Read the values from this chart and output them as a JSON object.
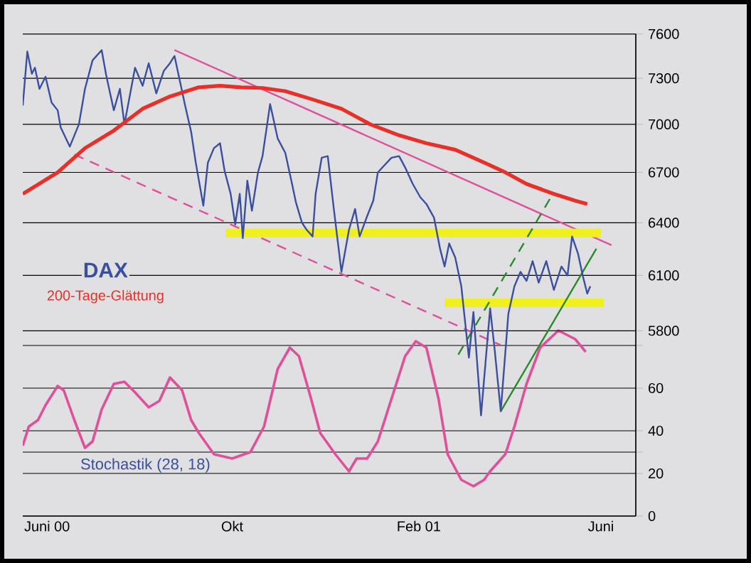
{
  "chart_data": {
    "type": "line",
    "annotations": [
      "Stochastik (28, 18)"
    ],
    "x": [
      "2000-05-16",
      "2000-05-19",
      "2000-05-22",
      "2000-05-24",
      "2000-05-27",
      "2000-05-31",
      "2000-06-04",
      "2000-06-08",
      "2000-06-10",
      "2000-06-16",
      "2000-06-22",
      "2000-06-26",
      "2000-07-01",
      "2000-07-07",
      "2000-07-10",
      "2000-07-15",
      "2000-07-19",
      "2000-07-22",
      "2000-07-29",
      "2000-08-03",
      "2000-08-07",
      "2000-08-12",
      "2000-08-17",
      "2000-08-21",
      "2000-08-24",
      "2000-08-28",
      "2000-08-31",
      "2000-09-04",
      "2000-09-07",
      "2000-09-12",
      "2000-09-15",
      "2000-09-19",
      "2000-09-23",
      "2000-09-26",
      "2000-09-30",
      "2000-10-03",
      "2000-10-06",
      "2000-10-08",
      "2000-10-11",
      "2000-10-14",
      "2000-10-18",
      "2000-10-21",
      "2000-10-26",
      "2000-10-31",
      "2000-11-05",
      "2000-11-09",
      "2000-11-12",
      "2000-11-16",
      "2000-11-19",
      "2000-11-23",
      "2000-11-25",
      "2000-11-29",
      "2000-12-03",
      "2000-12-07",
      "2000-12-12",
      "2000-12-17",
      "2000-12-21",
      "2000-12-24",
      "2000-12-29",
      "2001-01-02",
      "2001-01-05",
      "2001-01-09",
      "2001-01-14",
      "2001-01-19",
      "2001-01-23",
      "2001-01-28",
      "2001-02-02",
      "2001-02-06",
      "2001-02-11",
      "2001-02-15",
      "2001-02-18",
      "2001-02-21",
      "2001-02-25",
      "2001-03-01",
      "2001-03-06",
      "2001-03-09",
      "2001-03-14",
      "2001-03-20",
      "2001-03-23",
      "2001-03-27",
      "2001-04-01",
      "2001-04-05",
      "2001-04-09",
      "2001-04-13",
      "2001-04-17",
      "2001-04-21",
      "2001-04-26",
      "2001-05-01",
      "2001-05-06",
      "2001-05-10",
      "2001-05-13",
      "2001-05-17",
      "2001-05-20",
      "2001-05-23",
      "2001-05-25"
    ],
    "series": [
      {
        "name": "DAX",
        "color": "#3a4fa0",
        "values": [
          7120,
          7480,
          7330,
          7370,
          7230,
          7310,
          7140,
          7090,
          6980,
          6860,
          7000,
          7230,
          7420,
          7490,
          7320,
          7090,
          7230,
          7000,
          7370,
          7250,
          7400,
          7200,
          7350,
          7400,
          7450,
          7260,
          7120,
          6950,
          6760,
          6500,
          6760,
          6850,
          6880,
          6710,
          6570,
          6390,
          6570,
          6310,
          6650,
          6470,
          6700,
          6800,
          7130,
          6910,
          6820,
          6650,
          6520,
          6400,
          6360,
          6320,
          6570,
          6790,
          6800,
          6480,
          6120,
          6360,
          6480,
          6320,
          6440,
          6530,
          6700,
          6740,
          6790,
          6800,
          6730,
          6630,
          6550,
          6510,
          6430,
          6250,
          6150,
          6280,
          6200,
          6040,
          5660,
          5900,
          5370,
          5920,
          5700,
          5390,
          5890,
          6040,
          6120,
          6070,
          6180,
          6060,
          6180,
          6020,
          6150,
          6100,
          6320,
          6220,
          6100,
          6000,
          6040
        ]
      },
      {
        "name": "200-Tage-Glättung",
        "color": "#e8302a",
        "x": [
          "2000-05-16",
          "2000-06-08",
          "2000-06-26",
          "2000-07-15",
          "2000-08-03",
          "2000-08-21",
          "2000-09-09",
          "2000-09-23",
          "2000-10-07",
          "2000-10-21",
          "2000-11-05",
          "2000-11-23",
          "2000-12-12",
          "2000-12-31",
          "2001-01-19",
          "2001-02-06",
          "2001-02-25",
          "2001-03-16",
          "2001-03-30",
          "2001-04-13",
          "2001-05-01",
          "2001-05-15",
          "2001-05-23"
        ],
        "values": [
          6570,
          6700,
          6850,
          6960,
          7100,
          7180,
          7240,
          7250,
          7240,
          7235,
          7215,
          7160,
          7100,
          7000,
          6930,
          6880,
          6840,
          6760,
          6700,
          6630,
          6570,
          6530,
          6510
        ]
      },
      {
        "color": "#e0509a",
        "axis": "y2",
        "x": [
          "2000-05-16",
          "2000-05-20",
          "2000-05-26",
          "2000-05-31",
          "2000-06-08",
          "2000-06-12",
          "2000-06-19",
          "2000-06-26",
          "2000-07-01",
          "2000-07-07",
          "2000-07-15",
          "2000-07-22",
          "2000-07-29",
          "2000-08-07",
          "2000-08-14",
          "2000-08-21",
          "2000-08-29",
          "2000-09-04",
          "2000-09-09",
          "2000-09-19",
          "2000-10-01",
          "2000-10-13",
          "2000-10-22",
          "2000-10-31",
          "2000-11-08",
          "2000-11-14",
          "2000-11-22",
          "2000-11-28",
          "2000-12-08",
          "2000-12-17",
          "2000-12-22",
          "2000-12-29",
          "2001-01-05",
          "2001-01-14",
          "2001-01-23",
          "2001-01-30",
          "2001-02-06",
          "2001-02-14",
          "2001-02-20",
          "2001-03-01",
          "2001-03-09",
          "2001-03-16",
          "2001-03-20",
          "2001-03-30",
          "2001-04-05",
          "2001-04-13",
          "2001-04-22",
          "2001-05-04",
          "2001-05-15",
          "2001-05-22"
        ],
        "values": [
          33,
          42,
          45,
          52,
          61,
          59,
          45,
          32,
          35,
          50,
          62,
          63,
          58,
          51,
          54,
          65,
          59,
          45,
          39,
          29,
          27,
          30,
          42,
          69,
          79,
          75,
          55,
          39,
          29,
          21,
          27,
          27,
          35,
          55,
          75,
          82,
          79,
          55,
          29,
          17,
          14,
          17,
          21,
          29,
          42,
          62,
          79,
          87,
          83,
          77
        ]
      },
      {
        "color": "#e0509a",
        "x": [
          "2000-08-24",
          "2001-06-08"
        ],
        "values": [
          7490,
          6270
        ]
      },
      {
        "color": "#e0509a",
        "line_style": "dashed",
        "x": [
          "2000-06-19",
          "2001-03-27"
        ],
        "values": [
          6810,
          5725
        ]
      },
      {
        "color": "#f0f020",
        "x": [
          "2000-09-27",
          "2001-06-01"
        ],
        "values": [
          6340,
          6340
        ]
      },
      {
        "color": "#f0f020",
        "x": [
          "2001-02-18",
          "2001-06-03"
        ],
        "values": [
          5950,
          5950
        ]
      },
      {
        "color": "#2a8a2a",
        "line_style": "dashed",
        "x": [
          "2001-02-27",
          "2001-04-29"
        ],
        "values": [
          5675,
          6550
        ]
      },
      {
        "color": "#2a8a2a",
        "x": [
          "2001-03-27",
          "2001-05-29"
        ],
        "values": [
          5390,
          6250
        ]
      }
    ],
    "xlim": [
      "2000-05-16",
      "2001-06-24"
    ],
    "xticks": [
      {
        "value": "2000-06-01",
        "label": "Juni 00"
      },
      {
        "value": "2000-10-01",
        "label": "Okt"
      },
      {
        "value": "2001-02-01",
        "label": "Feb 01"
      },
      {
        "value": "2001-06-01",
        "label": "Juni"
      }
    ],
    "ylim": [
      4900,
      7600
    ],
    "yticks": [
      5800,
      6100,
      6400,
      6700,
      7000,
      7300,
      7600
    ],
    "y2lim": [
      0,
      226
    ],
    "y2ticks": [
      0,
      20,
      {
        "value": 30,
        "label": null
      },
      40,
      60,
      {
        "value": 80,
        "label": null
      }
    ],
    "log": "y",
    "grid": "y"
  }
}
